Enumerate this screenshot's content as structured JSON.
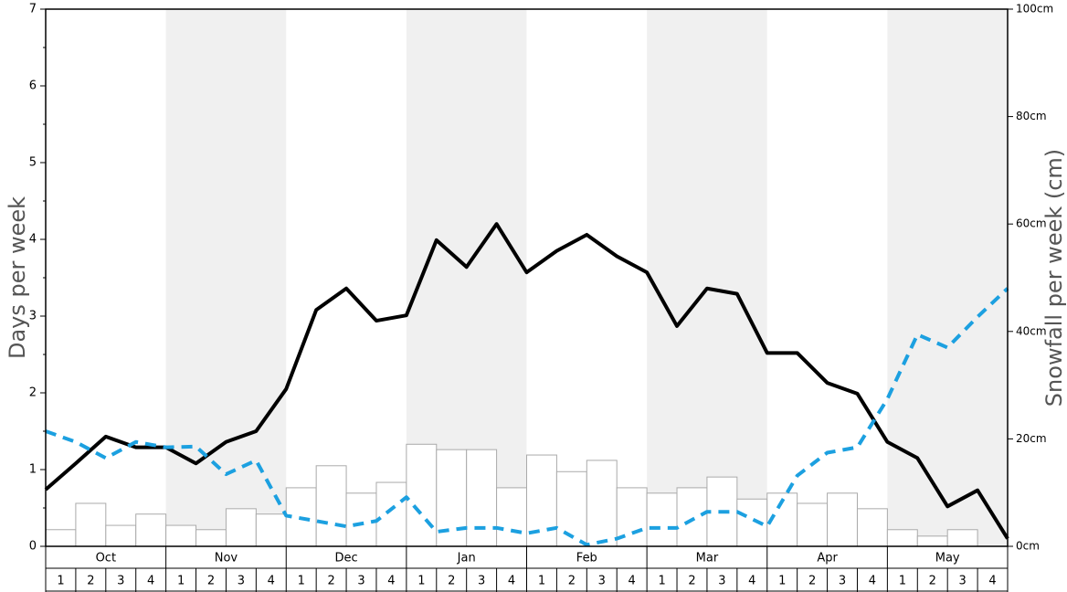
{
  "chart_data": {
    "type": "bar",
    "ylabel": "Days per week",
    "y2label": "Snowfall per week (cm)",
    "months": [
      "Oct",
      "Nov",
      "Dec",
      "Jan",
      "Feb",
      "Mar",
      "Apr",
      "May"
    ],
    "weeks": [
      "1",
      "2",
      "3",
      "4"
    ],
    "ylim": [
      0,
      7
    ],
    "yticks": [
      0,
      1,
      2,
      3,
      4,
      5,
      6,
      7
    ],
    "y2lim": [
      0,
      100
    ],
    "y2ticks": [
      {
        "value": 0,
        "label": "0cm"
      },
      {
        "value": 20,
        "label": "20cm"
      },
      {
        "value": 40,
        "label": "40cm"
      },
      {
        "value": 60,
        "label": "60cm"
      },
      {
        "value": 80,
        "label": "80cm"
      },
      {
        "value": 100,
        "label": "100cm"
      }
    ],
    "bars": {
      "axis": "y2",
      "color": "#ffffff",
      "values": [
        3.1,
        8.0,
        3.9,
        6.0,
        3.9,
        3.1,
        7.0,
        6.0,
        10.9,
        15.0,
        9.9,
        11.9,
        19.0,
        18.0,
        18.0,
        10.9,
        17.0,
        13.9,
        16.0,
        10.9,
        9.9,
        10.9,
        12.9,
        8.8,
        9.9,
        8.0,
        9.9,
        7.0,
        3.1,
        1.9,
        3.1,
        0
      ]
    },
    "lines": [
      {
        "color": "#000000",
        "values": [
          0.74,
          1.08,
          1.43,
          1.29,
          1.29,
          1.08,
          1.36,
          1.5,
          2.05,
          3.08,
          3.36,
          2.94,
          3.01,
          3.99,
          3.64,
          4.2,
          3.57,
          3.85,
          4.06,
          3.78,
          3.57,
          2.87,
          3.36,
          3.29,
          2.52,
          2.52,
          2.13,
          1.99,
          1.36,
          1.15,
          0.52,
          0.73,
          0.1
        ]
      },
      {
        "color": "#1ca0e0",
        "dashed": true,
        "values": [
          1.5,
          1.36,
          1.15,
          1.36,
          1.29,
          1.3,
          0.94,
          1.12,
          0.4,
          0.33,
          0.26,
          0.33,
          0.64,
          0.19,
          0.24,
          0.24,
          0.17,
          0.24,
          0.02,
          0.1,
          0.24,
          0.24,
          0.45,
          0.45,
          0.26,
          0.92,
          1.22,
          1.29,
          1.92,
          2.76,
          2.59,
          2.99,
          3.36
        ]
      }
    ]
  }
}
